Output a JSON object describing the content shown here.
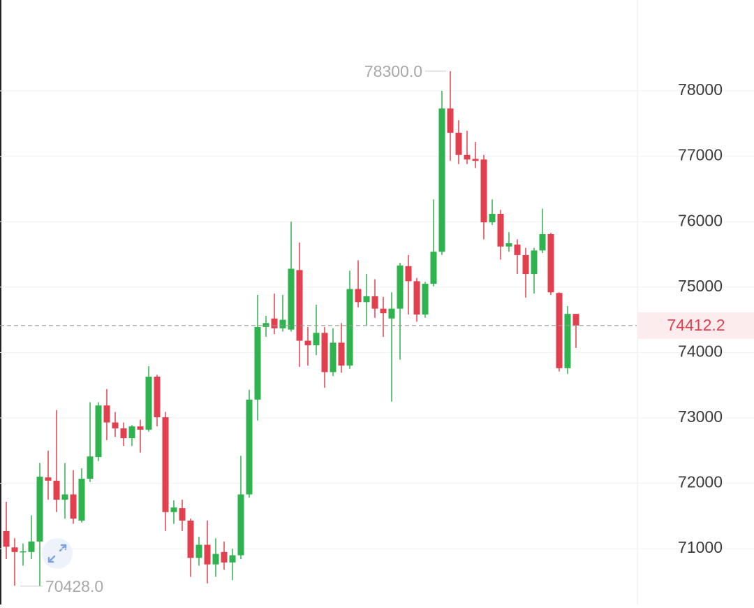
{
  "chart_data": {
    "type": "candlestick",
    "up_color": "#2fb34e",
    "down_color": "#e2404f",
    "open": [
      71270,
      71020,
      70950,
      70950,
      71110,
      72090,
      72040,
      71750,
      71830,
      71430,
      72070,
      72400,
      73190,
      72930,
      72840,
      72690,
      72870,
      72820,
      73630,
      73010,
      71560,
      71620,
      71430,
      70860,
      71060,
      70760,
      70950,
      70790,
      70900,
      71830,
      73280,
      74390,
      74520,
      74370,
      74350,
      75260,
      74180,
      74110,
      74300,
      73700,
      74150,
      73800,
      74970,
      74770,
      74860,
      74670,
      74520,
      74670,
      75320,
      75090,
      74580,
      75050,
      75540,
      77730,
      77360,
      77020,
      76960,
      76950,
      75990,
      76120,
      75620,
      75650,
      75490,
      75200,
      75560,
      75810,
      74910,
      73760,
      74590
    ],
    "high": [
      71718,
      71160,
      71080,
      71510,
      72310,
      72500,
      73120,
      72310,
      72200,
      72230,
      73240,
      73240,
      73440,
      73090,
      72930,
      72890,
      72970,
      73790,
      73660,
      73090,
      71740,
      71750,
      71460,
      71180,
      71430,
      71160,
      71110,
      71000,
      72420,
      73430,
      74880,
      74560,
      74900,
      74880,
      76000,
      75680,
      74390,
      74730,
      74390,
      74370,
      74450,
      75250,
      75410,
      75200,
      75120,
      74850,
      74920,
      75370,
      75490,
      75140,
      75080,
      76340,
      78000,
      78300,
      77550,
      77390,
      77220,
      77020,
      76340,
      76180,
      75840,
      75730,
      75600,
      75600,
      76200,
      75830,
      74920,
      74710,
      74590
    ],
    "low": [
      70842,
      70436,
      70740,
      70840,
      70428,
      71750,
      71560,
      71460,
      71380,
      71400,
      72020,
      72340,
      72660,
      72710,
      72570,
      72570,
      72470,
      72790,
      72870,
      71270,
      71380,
      71270,
      70570,
      70740,
      70470,
      70570,
      70680,
      70520,
      70840,
      71780,
      72960,
      74240,
      74280,
      74320,
      74320,
      73780,
      73800,
      73960,
      73460,
      73640,
      73690,
      73750,
      74690,
      74410,
      74530,
      74240,
      73250,
      73890,
      74580,
      74470,
      74530,
      75010,
      75490,
      76930,
      76880,
      76880,
      76820,
      75730,
      75950,
      75420,
      75540,
      75200,
      74840,
      74900,
      75520,
      74880,
      73710,
      73670,
      74070
    ],
    "close": [
      71030,
      70950,
      70960,
      71110,
      72100,
      72040,
      71750,
      71830,
      71460,
      72070,
      72410,
      73190,
      72930,
      72840,
      72690,
      72870,
      72820,
      73630,
      73010,
      71560,
      71630,
      71430,
      70860,
      71060,
      70760,
      70920,
      70790,
      70900,
      71830,
      73280,
      74390,
      74450,
      74370,
      74500,
      75280,
      74180,
      74110,
      74300,
      73700,
      74150,
      73800,
      74970,
      74770,
      74860,
      74670,
      74600,
      74670,
      75330,
      75090,
      74580,
      75050,
      75540,
      77730,
      77360,
      77020,
      76950,
      76930,
      75990,
      76120,
      75620,
      75670,
      75490,
      75200,
      75560,
      75810,
      74920,
      73760,
      74590,
      74412.2
    ],
    "ylim": [
      70147,
      79389
    ],
    "yticks": [
      71000,
      72000,
      73000,
      74000,
      75000,
      76000,
      77000,
      78000
    ],
    "grid": true,
    "max_annotation": {
      "value": 78300,
      "label": "78300.0"
    },
    "min_annotation": {
      "value": 70428,
      "label": "70428.0"
    },
    "last_price": 74412.2
  }
}
